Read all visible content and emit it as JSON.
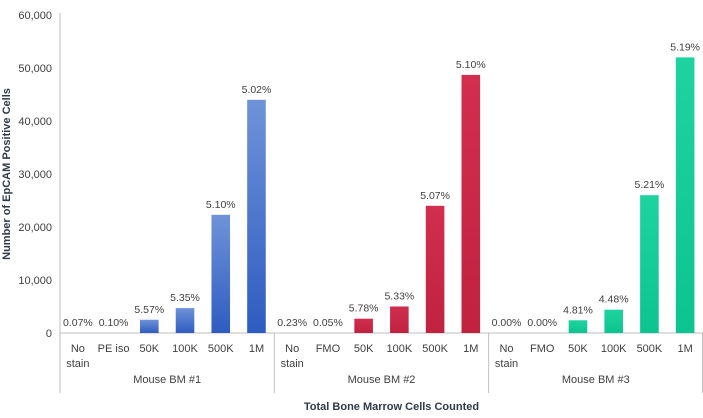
{
  "chart_data": {
    "type": "bar",
    "xlabel": "Total Bone Marrow Cells Counted",
    "ylabel": "Number of EpCAM Positive Cells",
    "ylim": [
      0,
      60000
    ],
    "yticks": [
      "0",
      "10,000",
      "20,000",
      "30,000",
      "40,000",
      "50,000",
      "60,000"
    ],
    "grid": false,
    "groups": [
      {
        "name": "Mouse BM #1",
        "color_top": "#6f93d9",
        "color_bottom": "#2e5cc0",
        "categories": [
          [
            "No",
            "stain"
          ],
          [
            "PE iso"
          ],
          [
            "50K"
          ],
          [
            "100K"
          ],
          [
            "500K"
          ],
          [
            "1M"
          ]
        ],
        "values": [
          0,
          0,
          2500,
          4700,
          22300,
          44000
        ],
        "labels": [
          "0.07%",
          "0.10%",
          "5.57%",
          "5.35%",
          "5.10%",
          "5.02%"
        ]
      },
      {
        "name": "Mouse BM #2",
        "color_top": "#d22e4f",
        "color_bottom": "#c0223f",
        "categories": [
          [
            "No",
            "stain"
          ],
          [
            "FMO"
          ],
          [
            "50K"
          ],
          [
            "100K"
          ],
          [
            "500K"
          ],
          [
            "1M"
          ]
        ],
        "values": [
          0,
          0,
          2700,
          5000,
          24000,
          48700
        ],
        "labels": [
          "0.23%",
          "0.05%",
          "5.78%",
          "5.33%",
          "5.07%",
          "5.10%"
        ]
      },
      {
        "name": "Mouse BM #3",
        "color_top": "#1fd3a0",
        "color_bottom": "#0cc490",
        "categories": [
          [
            "No",
            "stain"
          ],
          [
            "FMO"
          ],
          [
            "50K"
          ],
          [
            "100K"
          ],
          [
            "500K"
          ],
          [
            "1M"
          ]
        ],
        "values": [
          0,
          0,
          2400,
          4400,
          26000,
          52000
        ],
        "labels": [
          "0.00%",
          "0.00%",
          "4.81%",
          "4.48%",
          "5.21%",
          "5.19%"
        ]
      }
    ]
  }
}
